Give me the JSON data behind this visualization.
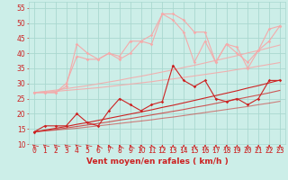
{
  "x": [
    0,
    1,
    2,
    3,
    4,
    5,
    6,
    7,
    8,
    9,
    10,
    11,
    12,
    13,
    14,
    15,
    16,
    17,
    18,
    19,
    20,
    21,
    22,
    23
  ],
  "series": [
    {
      "name": "pink_volatile1",
      "color": "#f4aaaa",
      "alpha": 1.0,
      "lw": 0.8,
      "marker": "D",
      "ms": 1.8,
      "y": [
        27,
        27,
        27,
        29,
        43,
        40,
        38,
        40,
        39,
        44,
        44,
        46,
        53,
        53,
        51,
        47,
        47,
        37,
        43,
        42,
        35,
        41,
        48,
        49
      ]
    },
    {
      "name": "pink_volatile2",
      "color": "#f4aaaa",
      "alpha": 1.0,
      "lw": 0.8,
      "marker": "D",
      "ms": 1.8,
      "y": [
        27,
        27,
        27,
        30,
        39,
        38,
        38,
        40,
        38,
        40,
        44,
        43,
        53,
        51,
        47,
        37,
        44,
        37,
        43,
        40,
        37,
        41,
        44,
        49
      ]
    },
    {
      "name": "pink_trend_upper",
      "color": "#f4aaaa",
      "alpha": 0.9,
      "lw": 0.8,
      "marker": null,
      "ms": 0,
      "y": [
        27,
        27.4,
        27.8,
        28.3,
        28.8,
        29.3,
        29.9,
        30.5,
        31.1,
        31.8,
        32.4,
        33.1,
        33.8,
        34.5,
        35.3,
        36.0,
        36.8,
        37.6,
        38.4,
        39.2,
        40.1,
        40.9,
        41.8,
        42.7
      ]
    },
    {
      "name": "pink_trend_lower",
      "color": "#f4aaaa",
      "alpha": 0.9,
      "lw": 0.8,
      "marker": null,
      "ms": 0,
      "y": [
        27,
        27.2,
        27.4,
        27.7,
        28.0,
        28.3,
        28.6,
        29.0,
        29.4,
        29.8,
        30.2,
        30.6,
        31.1,
        31.5,
        32.0,
        32.5,
        33.0,
        33.5,
        34.0,
        34.6,
        35.1,
        35.7,
        36.3,
        36.9
      ]
    },
    {
      "name": "red_volatile",
      "color": "#cc2222",
      "alpha": 1.0,
      "lw": 0.8,
      "marker": "D",
      "ms": 1.8,
      "y": [
        14,
        16,
        16,
        16,
        20,
        17,
        16,
        21,
        25,
        23,
        21,
        23,
        24,
        36,
        31,
        29,
        31,
        25,
        24,
        25,
        23,
        25,
        31,
        31
      ]
    },
    {
      "name": "red_trend1",
      "color": "#cc2222",
      "alpha": 1.0,
      "lw": 0.8,
      "marker": null,
      "ms": 0,
      "y": [
        14,
        14.6,
        15.2,
        15.8,
        16.5,
        17.1,
        17.8,
        18.5,
        19.2,
        19.9,
        20.6,
        21.3,
        22.1,
        22.8,
        23.6,
        24.4,
        25.2,
        26.0,
        26.8,
        27.6,
        28.5,
        29.3,
        30.2,
        31.1
      ]
    },
    {
      "name": "red_trend2",
      "color": "#cc2222",
      "alpha": 0.75,
      "lw": 0.8,
      "marker": null,
      "ms": 0,
      "y": [
        14,
        14.4,
        14.8,
        15.3,
        15.8,
        16.3,
        16.8,
        17.3,
        17.9,
        18.4,
        19.0,
        19.6,
        20.2,
        20.8,
        21.4,
        22.1,
        22.7,
        23.4,
        24.1,
        24.8,
        25.5,
        26.2,
        26.9,
        27.7
      ]
    },
    {
      "name": "red_trend3",
      "color": "#cc2222",
      "alpha": 0.55,
      "lw": 0.8,
      "marker": null,
      "ms": 0,
      "y": [
        14,
        14.3,
        14.6,
        14.9,
        15.2,
        15.6,
        16.0,
        16.4,
        16.8,
        17.2,
        17.6,
        18.0,
        18.5,
        18.9,
        19.4,
        19.9,
        20.4,
        20.9,
        21.4,
        21.9,
        22.4,
        23.0,
        23.5,
        24.1
      ]
    }
  ],
  "xlabel": "Vent moyen/en rafales ( km/h )",
  "xlim": [
    -0.5,
    23.5
  ],
  "ylim": [
    10,
    57
  ],
  "yticks": [
    10,
    15,
    20,
    25,
    30,
    35,
    40,
    45,
    50,
    55
  ],
  "xticks": [
    0,
    1,
    2,
    3,
    4,
    5,
    6,
    7,
    8,
    9,
    10,
    11,
    12,
    13,
    14,
    15,
    16,
    17,
    18,
    19,
    20,
    21,
    22,
    23
  ],
  "bg_color": "#cceee8",
  "grid_color": "#aad8d0",
  "tick_color": "#cc2222",
  "xlabel_color": "#cc2222",
  "xlabel_fontsize": 6.5,
  "tick_fontsize": 5.5
}
